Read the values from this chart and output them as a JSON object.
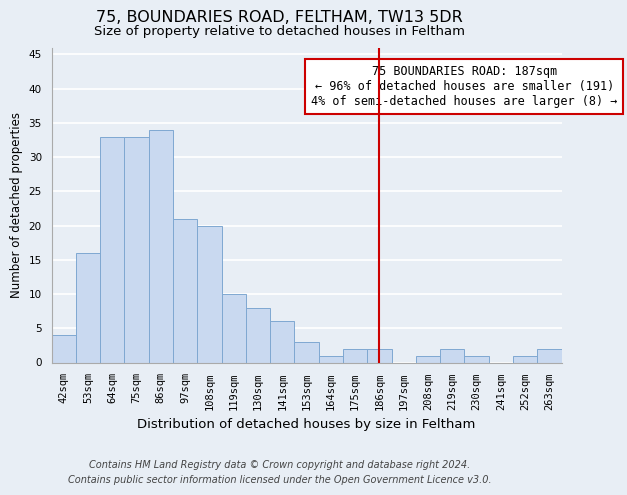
{
  "title": "75, BOUNDARIES ROAD, FELTHAM, TW13 5DR",
  "subtitle": "Size of property relative to detached houses in Feltham",
  "xlabel": "Distribution of detached houses by size in Feltham",
  "ylabel": "Number of detached properties",
  "bar_labels": [
    "42sqm",
    "53sqm",
    "64sqm",
    "75sqm",
    "86sqm",
    "97sqm",
    "108sqm",
    "119sqm",
    "130sqm",
    "141sqm",
    "153sqm",
    "164sqm",
    "175sqm",
    "186sqm",
    "197sqm",
    "208sqm",
    "219sqm",
    "230sqm",
    "241sqm",
    "252sqm",
    "263sqm"
  ],
  "bar_values": [
    4,
    16,
    33,
    33,
    34,
    21,
    20,
    10,
    8,
    6,
    3,
    1,
    2,
    2,
    0,
    1,
    2,
    1,
    0,
    1,
    2
  ],
  "bar_color": "#c9d9f0",
  "bar_edge_color": "#7fa8d1",
  "vline_index": 13,
  "vline_color": "#cc0000",
  "annotation_text": "75 BOUNDARIES ROAD: 187sqm\n← 96% of detached houses are smaller (191)\n4% of semi-detached houses are larger (8) →",
  "annotation_box_color": "#ffffff",
  "annotation_box_edge": "#cc0000",
  "ylim": [
    0,
    46
  ],
  "yticks": [
    0,
    5,
    10,
    15,
    20,
    25,
    30,
    35,
    40,
    45
  ],
  "grid_color": "#ffffff",
  "bg_color": "#e8eef5",
  "footer_line1": "Contains HM Land Registry data © Crown copyright and database right 2024.",
  "footer_line2": "Contains public sector information licensed under the Open Government Licence v3.0.",
  "title_fontsize": 11.5,
  "subtitle_fontsize": 9.5,
  "xlabel_fontsize": 9.5,
  "ylabel_fontsize": 8.5,
  "tick_fontsize": 7.5,
  "annotation_fontsize": 8.5,
  "footer_fontsize": 7.0
}
